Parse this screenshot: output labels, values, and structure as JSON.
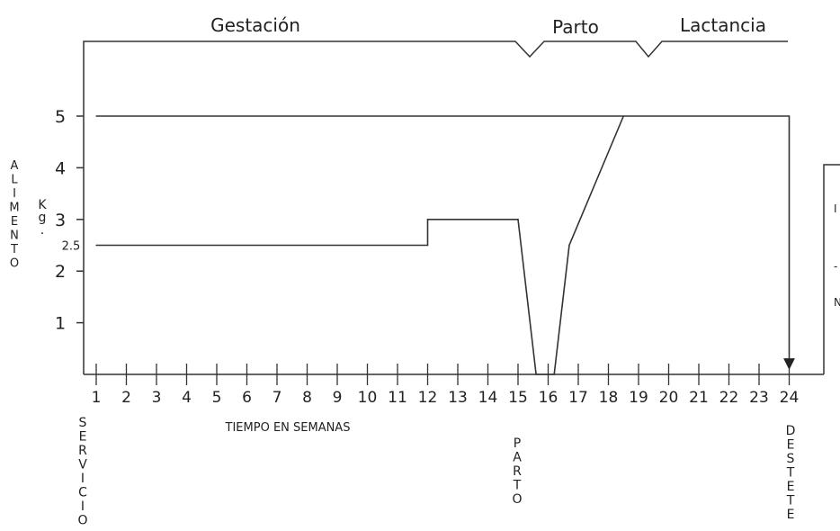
{
  "phase_labels": {
    "gestation": "Gestación",
    "birth": "Parto",
    "lactation": "Lactancia"
  },
  "y_axis": {
    "title_letters": [
      "A",
      "L",
      "I",
      "M",
      "E",
      "N",
      "T",
      "O"
    ],
    "unit_letters": [
      "K",
      "g",
      "."
    ],
    "ticks": [
      {
        "value": 1,
        "label": "1"
      },
      {
        "value": 2,
        "label": "2"
      },
      {
        "value": 2.5,
        "label": "2.5"
      },
      {
        "value": 3,
        "label": "3"
      },
      {
        "value": 4,
        "label": "4"
      },
      {
        "value": 5,
        "label": "5"
      }
    ]
  },
  "x_axis": {
    "title": "TIEMPO EN SEMANAS",
    "ticks": [
      "1",
      "2",
      "3",
      "4",
      "5",
      "6",
      "7",
      "8",
      "9",
      "10",
      "11",
      "12",
      "13",
      "14",
      "15",
      "16",
      "17",
      "18",
      "19",
      "20",
      "21",
      "22",
      "23",
      "24"
    ]
  },
  "events": {
    "service_letters": [
      "S",
      "E",
      "R",
      "V",
      "I",
      "C",
      "I",
      "O"
    ],
    "birth_letters": [
      "P",
      "A",
      "R",
      "T",
      "O"
    ],
    "weaning_letters": [
      "D",
      "E",
      "S",
      "T",
      "E",
      "T",
      "E"
    ]
  },
  "chart_data": {
    "type": "line",
    "title": "",
    "xlabel": "TIEMPO EN SEMANAS",
    "ylabel": "ALIMENTO Kg.",
    "xlim": [
      1,
      24
    ],
    "ylim": [
      0,
      6
    ],
    "grid": false,
    "series": [
      {
        "x": [
          1,
          12,
          12,
          15,
          15.6,
          16.2,
          16.7,
          18.5
        ],
        "y": [
          2.5,
          2.5,
          3,
          3,
          0,
          0,
          2.5,
          5
        ]
      },
      {
        "x": [
          1,
          24,
          24
        ],
        "y": [
          5,
          5,
          0.2
        ]
      }
    ],
    "annotations": [
      "SERVICIO",
      "PARTO",
      "DESTETE"
    ]
  }
}
